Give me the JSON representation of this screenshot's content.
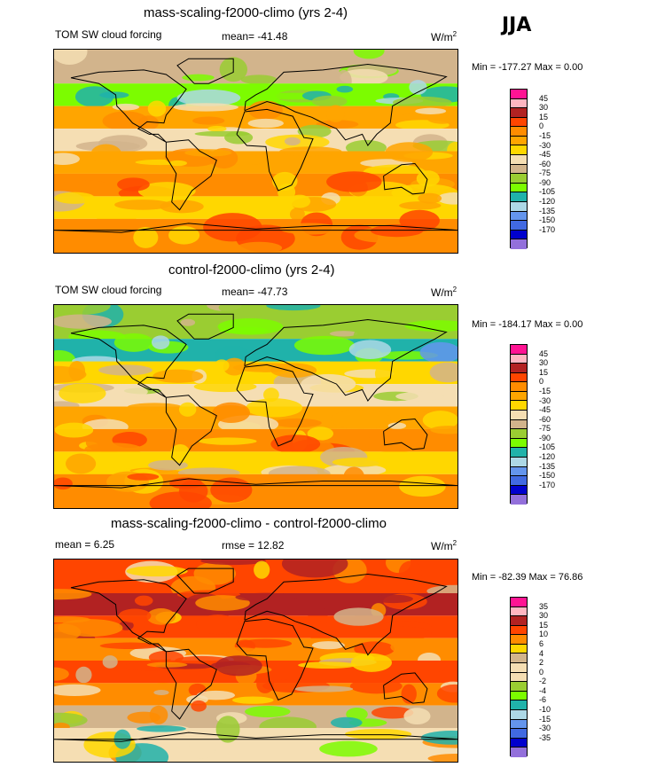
{
  "season": "JJA",
  "units": "W/m",
  "units_sup": "2",
  "panels": [
    {
      "title": "mass-scaling-f2000-climo (yrs 2-4)",
      "left_label": "TOM SW cloud forcing",
      "center_label": "mean= -41.48",
      "minmax": "Min = -177.27 Max =   0.00",
      "colorbar_labels": [
        "45",
        "30",
        "15",
        "0",
        "-15",
        "-30",
        "-45",
        "-60",
        "-75",
        "-90",
        "-105",
        "-120",
        "-135",
        "-150",
        "-170"
      ]
    },
    {
      "title": "control-f2000-climo (yrs 2-4)",
      "left_label": "TOM SW cloud forcing",
      "center_label": "mean= -47.73",
      "minmax": "Min = -184.17 Max =   0.00",
      "colorbar_labels": [
        "45",
        "30",
        "15",
        "0",
        "-15",
        "-30",
        "-45",
        "-60",
        "-75",
        "-90",
        "-105",
        "-120",
        "-135",
        "-150",
        "-170"
      ]
    },
    {
      "title": "mass-scaling-f2000-climo - control-f2000-climo",
      "left_label": "mean =  6.25",
      "center_label": "rmse =  12.82",
      "minmax": "Min = -82.39 Max =  76.86",
      "colorbar_labels": [
        "35",
        "30",
        "15",
        "10",
        "6",
        "4",
        "2",
        "0",
        "-2",
        "-4",
        "-6",
        "-10",
        "-15",
        "-30",
        "-35"
      ]
    }
  ],
  "colors": {
    "abs_scale": [
      "#ff1493",
      "#ffb6c1",
      "#b22222",
      "#ff4500",
      "#ff8c00",
      "#ffa500",
      "#ffd700",
      "#f5deb3",
      "#d2b48c",
      "#9acd32",
      "#7cfc00",
      "#20b2aa",
      "#add8e6",
      "#6495ed",
      "#4169e1",
      "#0000cd",
      "#9370db"
    ],
    "diff_scale": [
      "#ff1493",
      "#ffb6c1",
      "#b22222",
      "#ff4500",
      "#ff8c00",
      "#ffd700",
      "#d2b48c",
      "#f5deb3",
      "#f5deb3",
      "#9acd32",
      "#7cfc00",
      "#20b2aa",
      "#add8e6",
      "#6495ed",
      "#4169e1",
      "#0000cd",
      "#9370db"
    ]
  },
  "chart_data": [
    {
      "type": "heatmap",
      "title": "mass-scaling-f2000-climo (yrs 2-4)",
      "variable": "TOM SW cloud forcing",
      "season": "JJA",
      "units": "W/m2",
      "mean": -41.48,
      "min": -177.27,
      "max": 0.0,
      "contour_levels": [
        45,
        30,
        15,
        0,
        -15,
        -30,
        -45,
        -60,
        -75,
        -90,
        -105,
        -120,
        -135,
        -150,
        -170
      ],
      "bands": [
        {
          "lat_range": [
            60,
            90
          ],
          "value": -75
        },
        {
          "lat_range": [
            40,
            60
          ],
          "value": -105
        },
        {
          "lat_range": [
            20,
            40
          ],
          "value": -30
        },
        {
          "lat_range": [
            0,
            20
          ],
          "value": -60
        },
        {
          "lat_range": [
            -20,
            0
          ],
          "value": -30
        },
        {
          "lat_range": [
            -40,
            -20
          ],
          "value": -15
        },
        {
          "lat_range": [
            -60,
            -40
          ],
          "value": -45
        },
        {
          "lat_range": [
            -90,
            -60
          ],
          "value": -15
        }
      ]
    },
    {
      "type": "heatmap",
      "title": "control-f2000-climo (yrs 2-4)",
      "variable": "TOM SW cloud forcing",
      "season": "JJA",
      "units": "W/m2",
      "mean": -47.73,
      "min": -184.17,
      "max": 0.0,
      "contour_levels": [
        45,
        30,
        15,
        0,
        -15,
        -30,
        -45,
        -60,
        -75,
        -90,
        -105,
        -120,
        -135,
        -150,
        -170
      ],
      "bands": [
        {
          "lat_range": [
            60,
            90
          ],
          "value": -90
        },
        {
          "lat_range": [
            40,
            60
          ],
          "value": -120
        },
        {
          "lat_range": [
            20,
            40
          ],
          "value": -45
        },
        {
          "lat_range": [
            0,
            20
          ],
          "value": -60
        },
        {
          "lat_range": [
            -20,
            0
          ],
          "value": -30
        },
        {
          "lat_range": [
            -40,
            -20
          ],
          "value": -15
        },
        {
          "lat_range": [
            -60,
            -40
          ],
          "value": -45
        },
        {
          "lat_range": [
            -90,
            -60
          ],
          "value": -15
        }
      ]
    },
    {
      "type": "heatmap",
      "title": "mass-scaling-f2000-climo - control-f2000-climo",
      "season": "JJA",
      "units": "W/m2",
      "mean": 6.25,
      "rmse": 12.82,
      "min": -82.39,
      "max": 76.86,
      "contour_levels": [
        35,
        30,
        15,
        10,
        6,
        4,
        2,
        0,
        -2,
        -4,
        -6,
        -10,
        -15,
        -30,
        -35
      ],
      "bands": [
        {
          "lat_range": [
            60,
            90
          ],
          "value": 10
        },
        {
          "lat_range": [
            40,
            60
          ],
          "value": 15
        },
        {
          "lat_range": [
            20,
            40
          ],
          "value": 10
        },
        {
          "lat_range": [
            0,
            20
          ],
          "value": 6
        },
        {
          "lat_range": [
            -20,
            0
          ],
          "value": 10
        },
        {
          "lat_range": [
            -40,
            -20
          ],
          "value": 6
        },
        {
          "lat_range": [
            -60,
            -40
          ],
          "value": 2
        },
        {
          "lat_range": [
            -90,
            -60
          ],
          "value": 0
        }
      ]
    }
  ]
}
